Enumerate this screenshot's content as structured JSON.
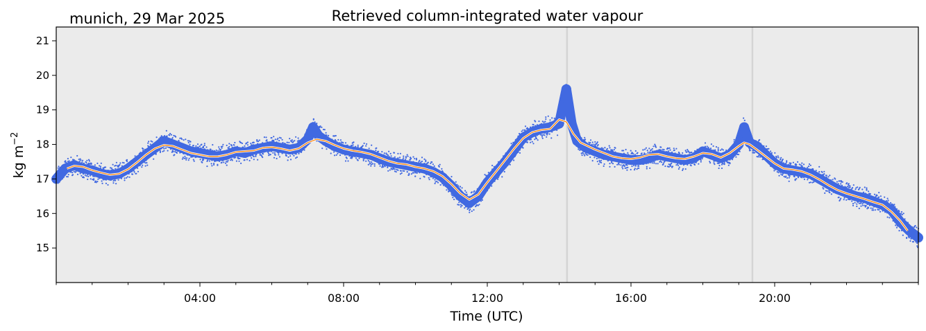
{
  "chart_data": {
    "type": "scatter",
    "title": "Retrieved column-integrated water vapour",
    "subtitle": "munich, 29 Mar 2025",
    "xlabel": "Time (UTC)",
    "ylabel_main": "kg m",
    "ylabel_sup": "−2",
    "xlim": [
      0,
      24
    ],
    "ylim": [
      14.0,
      21.4
    ],
    "x_ticks": [
      {
        "value": 4,
        "label": "04:00"
      },
      {
        "value": 8,
        "label": "08:00"
      },
      {
        "value": 12,
        "label": "12:00"
      },
      {
        "value": 16,
        "label": "16:00"
      },
      {
        "value": 20,
        "label": "20:00"
      }
    ],
    "y_ticks": [
      15,
      16,
      17,
      18,
      19,
      20,
      21
    ],
    "grid": false,
    "background": "#ebebeb",
    "vertical_markers": [
      14.22,
      19.38
    ],
    "colors": {
      "points": "#4169e1",
      "smooth": "#ff8c1a",
      "smooth_edge": "#ffffff",
      "marker": "#d4d4d4"
    },
    "series": [
      {
        "kind": "points",
        "x": [
          0.0,
          0.25,
          0.5,
          0.75,
          1.0,
          1.25,
          1.5,
          1.75,
          2.0,
          2.25,
          2.5,
          2.75,
          3.0,
          3.25,
          3.5,
          3.75,
          4.0,
          4.25,
          4.5,
          4.75,
          5.0,
          5.25,
          5.5,
          5.75,
          6.0,
          6.25,
          6.5,
          6.75,
          7.0,
          7.15,
          7.3,
          7.5,
          7.75,
          8.0,
          8.25,
          8.5,
          8.75,
          9.0,
          9.25,
          9.5,
          9.75,
          10.0,
          10.25,
          10.5,
          10.75,
          11.0,
          11.25,
          11.5,
          11.75,
          12.0,
          12.25,
          12.5,
          12.75,
          13.0,
          13.25,
          13.5,
          13.75,
          14.0,
          14.2,
          14.35,
          14.5,
          14.75,
          15.0,
          15.25,
          15.5,
          15.75,
          16.0,
          16.25,
          16.5,
          16.75,
          17.0,
          17.25,
          17.5,
          17.75,
          18.0,
          18.25,
          18.5,
          18.75,
          19.0,
          19.15,
          19.3,
          19.5,
          19.75,
          20.0,
          20.25,
          20.5,
          20.75,
          21.0,
          21.25,
          21.5,
          21.75,
          22.0,
          22.25,
          22.5,
          22.75,
          23.0,
          23.25,
          23.5,
          23.75,
          24.0
        ],
        "y": [
          17.0,
          17.3,
          17.4,
          17.3,
          17.25,
          17.15,
          17.1,
          17.15,
          17.3,
          17.5,
          17.7,
          17.9,
          18.1,
          18.0,
          17.9,
          17.8,
          17.75,
          17.7,
          17.65,
          17.7,
          17.8,
          17.75,
          17.85,
          17.9,
          17.95,
          17.9,
          17.85,
          17.9,
          18.15,
          18.5,
          18.25,
          18.1,
          17.95,
          17.85,
          17.8,
          17.75,
          17.7,
          17.6,
          17.5,
          17.45,
          17.4,
          17.35,
          17.3,
          17.2,
          17.05,
          16.8,
          16.5,
          16.3,
          16.5,
          16.9,
          17.2,
          17.5,
          17.85,
          18.2,
          18.35,
          18.45,
          18.5,
          18.6,
          19.6,
          18.6,
          18.1,
          17.9,
          17.8,
          17.7,
          17.65,
          17.6,
          17.55,
          17.55,
          17.6,
          17.7,
          17.65,
          17.6,
          17.55,
          17.6,
          17.8,
          17.7,
          17.6,
          17.7,
          18.0,
          18.5,
          18.05,
          17.95,
          17.7,
          17.45,
          17.3,
          17.25,
          17.2,
          17.15,
          17.0,
          16.85,
          16.7,
          16.6,
          16.5,
          16.45,
          16.35,
          16.25,
          16.1,
          15.75,
          15.5,
          15.3
        ]
      },
      {
        "kind": "smoothed",
        "x": [
          0.3,
          0.5,
          0.75,
          1.0,
          1.25,
          1.5,
          1.75,
          2.0,
          2.25,
          2.5,
          2.75,
          3.0,
          3.25,
          3.5,
          3.75,
          4.0,
          4.25,
          4.5,
          4.75,
          5.0,
          5.25,
          5.5,
          5.75,
          6.0,
          6.25,
          6.5,
          6.75,
          7.0,
          7.25,
          7.5,
          7.75,
          8.0,
          8.25,
          8.5,
          8.75,
          9.0,
          9.25,
          9.5,
          9.75,
          10.0,
          10.25,
          10.5,
          10.75,
          11.0,
          11.25,
          11.5,
          11.75,
          12.0,
          12.25,
          12.5,
          12.75,
          13.0,
          13.25,
          13.5,
          13.75,
          14.0,
          14.2,
          14.4,
          14.6,
          14.8,
          15.0,
          15.25,
          15.5,
          15.75,
          16.0,
          16.25,
          16.5,
          16.75,
          17.0,
          17.25,
          17.5,
          17.75,
          18.0,
          18.25,
          18.5,
          18.75,
          19.0,
          19.15,
          19.3,
          19.5,
          19.75,
          20.0,
          20.25,
          20.5,
          20.75,
          21.0,
          21.25,
          21.5,
          21.75,
          22.0,
          22.25,
          22.5,
          22.75,
          23.0,
          23.25,
          23.5,
          23.7
        ],
        "y": [
          17.3,
          17.38,
          17.35,
          17.25,
          17.18,
          17.12,
          17.15,
          17.28,
          17.48,
          17.7,
          17.88,
          17.98,
          17.95,
          17.85,
          17.75,
          17.7,
          17.65,
          17.65,
          17.7,
          17.78,
          17.8,
          17.82,
          17.9,
          17.92,
          17.88,
          17.82,
          17.88,
          18.05,
          18.15,
          18.1,
          17.98,
          17.88,
          17.82,
          17.78,
          17.72,
          17.62,
          17.52,
          17.45,
          17.42,
          17.35,
          17.3,
          17.22,
          17.08,
          16.85,
          16.58,
          16.4,
          16.55,
          16.9,
          17.22,
          17.55,
          17.88,
          18.18,
          18.35,
          18.42,
          18.45,
          18.72,
          18.65,
          18.3,
          18.05,
          17.95,
          17.85,
          17.75,
          17.65,
          17.6,
          17.58,
          17.62,
          17.7,
          17.72,
          17.65,
          17.6,
          17.58,
          17.65,
          17.75,
          17.72,
          17.62,
          17.75,
          17.95,
          18.05,
          18.0,
          17.85,
          17.65,
          17.45,
          17.3,
          17.27,
          17.22,
          17.12,
          16.98,
          16.82,
          16.68,
          16.58,
          16.5,
          16.42,
          16.33,
          16.25,
          16.05,
          15.78,
          15.5
        ]
      }
    ]
  }
}
